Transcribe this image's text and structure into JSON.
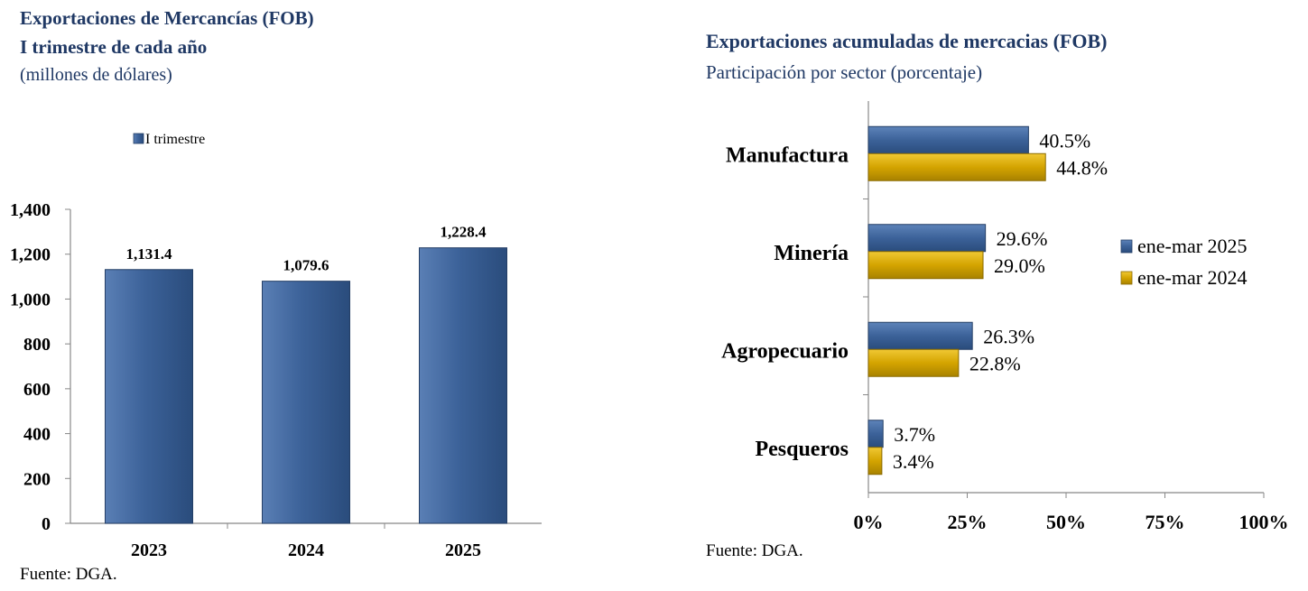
{
  "colors": {
    "series_2025": "#3c6299",
    "series_2024": "#d4a400",
    "title": "#1f3864"
  },
  "left": {
    "title": "Exportaciones de Mercancías (FOB)",
    "subtitle": "I trimestre de cada año",
    "unit": "(millones de dólares)",
    "source": "Fuente: DGA."
  },
  "right": {
    "title": "Exportaciones acumuladas de mercacias (FOB)",
    "subtitle": "Participación por sector (porcentaje)",
    "source": "Fuente: DGA."
  },
  "chart_data": [
    {
      "type": "bar",
      "title": "Exportaciones de Mercancías (FOB)",
      "categories": [
        "2023",
        "2024",
        "2025"
      ],
      "series": [
        {
          "name": "I trimestre",
          "values": [
            1131.4,
            1079.6,
            1228.4
          ]
        }
      ],
      "value_labels": [
        "1,131.4",
        "1,079.6",
        "1,228.4"
      ],
      "ylim": [
        0,
        1400
      ],
      "yticks": [
        0,
        200,
        400,
        600,
        800,
        1000,
        1200,
        1400
      ],
      "ytick_labels": [
        "0",
        "200",
        "400",
        "600",
        "800",
        "1,000",
        "1,200",
        "1,400"
      ],
      "legend": "top",
      "grid": false
    },
    {
      "type": "bar",
      "orientation": "horizontal",
      "title": "Exportaciones acumuladas de mercacias (FOB)",
      "categories": [
        "Manufactura",
        "Minería",
        "Agropecuario",
        "Pesqueros"
      ],
      "series": [
        {
          "name": "ene-mar 2025",
          "values": [
            40.5,
            29.6,
            26.3,
            3.7
          ],
          "labels": [
            "40.5%",
            "29.6%",
            "26.3%",
            "3.7%"
          ]
        },
        {
          "name": "ene-mar 2024",
          "values": [
            44.8,
            29.0,
            22.8,
            3.4
          ],
          "labels": [
            "44.8%",
            "29.0%",
            "22.8%",
            "3.4%"
          ]
        }
      ],
      "xlim": [
        0,
        100
      ],
      "xticks": [
        0,
        25,
        50,
        75,
        100
      ],
      "xtick_labels": [
        "0%",
        "25%",
        "50%",
        "75%",
        "100%"
      ],
      "legend": "right",
      "grid": false
    }
  ]
}
